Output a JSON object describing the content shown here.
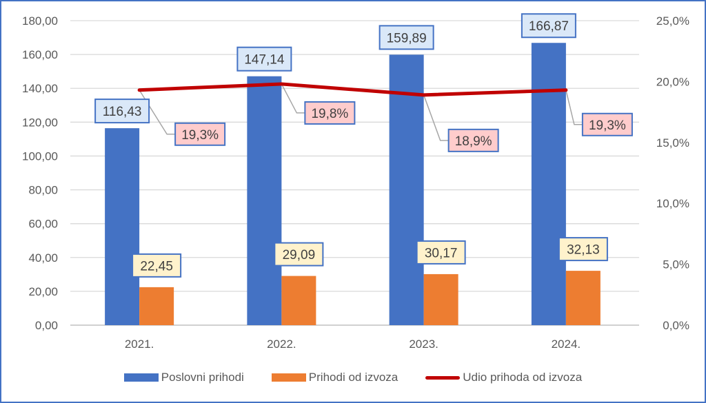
{
  "chart_data": {
    "type": "bar+line",
    "categories": [
      "2021.",
      "2022.",
      "2023.",
      "2024."
    ],
    "series": [
      {
        "name": "Poslovni prihodi",
        "type": "bar",
        "axis": "left",
        "color": "#4472C4",
        "values": [
          116.43,
          147.14,
          159.89,
          166.87
        ],
        "labels": [
          "116,43",
          "147,14",
          "159,89",
          "166,87"
        ],
        "label_fill": "#DAE8F8"
      },
      {
        "name": "Prihodi od izvoza",
        "type": "bar",
        "axis": "left",
        "color": "#ED7D31",
        "values": [
          22.45,
          29.09,
          30.17,
          32.13
        ],
        "labels": [
          "22,45",
          "29,09",
          "30,17",
          "32,13"
        ],
        "label_fill": "#FFF2CC"
      },
      {
        "name": "Udio prihoda od izvoza",
        "type": "line",
        "axis": "right",
        "color": "#C00000",
        "values": [
          19.3,
          19.8,
          18.9,
          19.3
        ],
        "labels": [
          "19,3%",
          "19,8%",
          "18,9%",
          "19,3%"
        ],
        "label_fill": "#FFCCCC"
      }
    ],
    "y_left": {
      "range": [
        0,
        180
      ],
      "ticks": [
        "0,00",
        "20,00",
        "40,00",
        "60,00",
        "80,00",
        "100,00",
        "120,00",
        "140,00",
        "160,00",
        "180,00"
      ]
    },
    "y_right": {
      "range": [
        0,
        25
      ],
      "ticks": [
        "0,0%",
        "5,0%",
        "10,0%",
        "15,0%",
        "20,0%",
        "25,0%"
      ]
    },
    "grid": true,
    "legend": "bottom",
    "xlabel": "",
    "ylabel": "",
    "title": ""
  }
}
